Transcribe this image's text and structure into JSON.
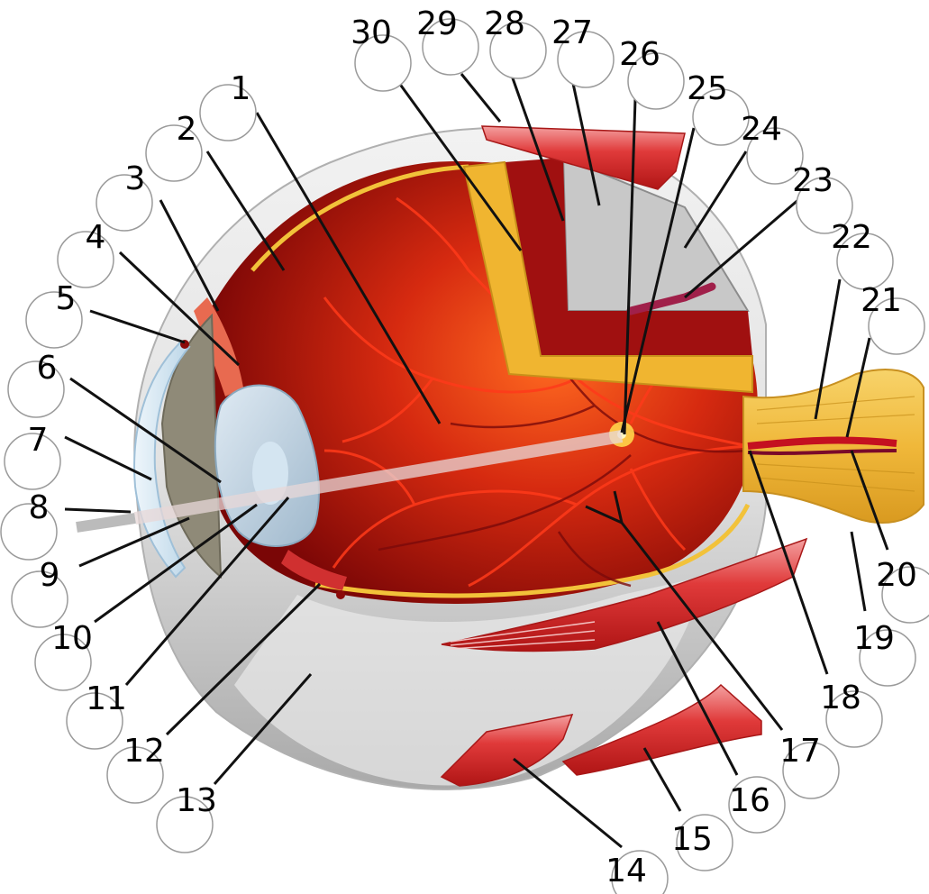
{
  "labels": [
    "1",
    "2",
    "3",
    "4",
    "5",
    "6",
    "7",
    "8",
    "9",
    "10",
    "11",
    "12",
    "13",
    "14",
    "15",
    "16",
    "17",
    "18",
    "19",
    "20",
    "21",
    "22",
    "23",
    "24",
    "25",
    "26",
    "27",
    "28",
    "29",
    "30"
  ],
  "colors": {
    "retina_dark": "#8b0a0a",
    "retina_mid": "#c8200e",
    "retina_light": "#ff5a1e",
    "sclera": "#d9d9d9",
    "choroid_yellow": "#f2c23a",
    "muscle": "#d8262a",
    "muscle_light": "#f28c8c",
    "optic_nerve": "#f3c24d",
    "lens": "#b9d3e6",
    "iris": "#8f8a78"
  }
}
